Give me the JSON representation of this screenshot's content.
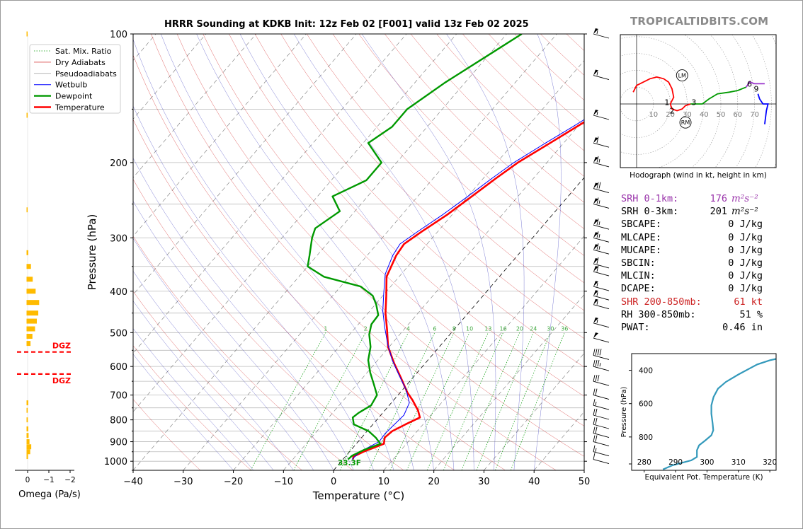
{
  "title": "HRRR Sounding at KDKB Init: 12z Feb 02 [F001] valid 13z Feb 02 2025",
  "watermark": "TROPICALTIDBITS.COM",
  "colors": {
    "temperature": "#ff0000",
    "dewpoint": "#009900",
    "wetbulb": "#0000ff",
    "dry_adiabat": "#cc0000",
    "moist_adiabat": "#0000aa",
    "mixing_ratio": "#009900",
    "omega_bar": "#ffbb00",
    "dgz": "#ff0000",
    "srh1": "#9933aa",
    "shr": "#cc2222",
    "theta_e": "#3399bb"
  },
  "chart_data": [
    {
      "type": "line",
      "name": "skew-t",
      "xlabel": "Temperature (°C)",
      "ylabel": "Pressure (hPa)",
      "xlim": [
        -40,
        50
      ],
      "ylim": [
        1050,
        100
      ],
      "y_scale": "log",
      "x_ticks": [
        "−40",
        "−30",
        "−20",
        "−10",
        "0",
        "10",
        "20",
        "30",
        "40",
        "50"
      ],
      "y_ticks": [
        "100",
        "200",
        "300",
        "400",
        "500",
        "600",
        "700",
        "800",
        "900",
        "1000"
      ],
      "legend": [
        "Sat. Mix. Ratio",
        "Dry Adiabats",
        "Pseudoadiabats",
        "Wetbulb",
        "Dewpoint",
        "Temperature"
      ],
      "legend_position": "top-left",
      "mixing_ratio_labels": [
        "1",
        "2",
        "4",
        "6",
        "8",
        "10",
        "13",
        "16",
        "20",
        "24",
        "30",
        "36"
      ],
      "surface_label": "33.3F",
      "series": [
        {
          "name": "Temperature",
          "points": [
            [
              2,
              990
            ],
            [
              1.6,
              975
            ],
            [
              2.8,
              950
            ],
            [
              5.5,
              910
            ],
            [
              4.6,
              880
            ],
            [
              5.0,
              850
            ],
            [
              6.5,
              820
            ],
            [
              8.2,
              790
            ],
            [
              6.6,
              760
            ],
            [
              3.8,
              720
            ],
            [
              1.4,
              690
            ],
            [
              -2.2,
              640
            ],
            [
              -6.2,
              590
            ],
            [
              -10.2,
              540
            ],
            [
              -13.5,
              490
            ],
            [
              -16.5,
              450
            ],
            [
              -19.3,
              410
            ],
            [
              -22.5,
              370
            ],
            [
              -24.2,
              330
            ],
            [
              -24.6,
              310
            ],
            [
              -23.2,
              290
            ],
            [
              -21,
              265
            ],
            [
              -19.2,
              240
            ],
            [
              -17.5,
              218
            ],
            [
              -15.8,
              200
            ],
            [
              -12.7,
              180
            ],
            [
              -10.2,
              165
            ],
            [
              -7.5,
              150
            ],
            [
              -5.0,
              138
            ],
            [
              -3.5,
              128
            ],
            [
              -0.6,
              118
            ],
            [
              1.2,
              110
            ],
            [
              2.3,
              100
            ]
          ]
        },
        {
          "name": "Wetbulb",
          "points": [
            [
              1.8,
              990
            ],
            [
              2.1,
              950
            ],
            [
              4.2,
              900
            ],
            [
              4.0,
              860
            ],
            [
              4.3,
              820
            ],
            [
              4.6,
              780
            ],
            [
              3.6,
              730
            ],
            [
              0.7,
              680
            ],
            [
              -3.1,
              630
            ],
            [
              -7.1,
              580
            ],
            [
              -10.9,
              530
            ],
            [
              -14.3,
              485
            ],
            [
              -17.4,
              445
            ],
            [
              -20.2,
              405
            ],
            [
              -23.2,
              365
            ],
            [
              -24.9,
              330
            ],
            [
              -25.4,
              310
            ],
            [
              -24,
              290
            ],
            [
              -21.9,
              265
            ],
            [
              -20.0,
              240
            ],
            [
              -18.3,
              218
            ],
            [
              -16.6,
              200
            ],
            [
              -13.6,
              180
            ],
            [
              -11.0,
              165
            ],
            [
              -8.3,
              150
            ],
            [
              -5.9,
              138
            ],
            [
              -4.3,
              128
            ],
            [
              -1.4,
              118
            ],
            [
              0.5,
              110
            ],
            [
              1.6,
              100
            ]
          ]
        },
        {
          "name": "Dewpoint",
          "points": [
            [
              1.0,
              990
            ],
            [
              1.2,
              970
            ],
            [
              2.6,
              940
            ],
            [
              4.8,
              910
            ],
            [
              2.8,
              880
            ],
            [
              0.3,
              850
            ],
            [
              -3.8,
              820
            ],
            [
              -5.2,
              790
            ],
            [
              -4.8,
              770
            ],
            [
              -3.6,
              740
            ],
            [
              -4.2,
              700
            ],
            [
              -6.7,
              660
            ],
            [
              -9.4,
              620
            ],
            [
              -11.9,
              580
            ],
            [
              -13.7,
              540
            ],
            [
              -16.1,
              505
            ],
            [
              -17.4,
              478
            ],
            [
              -17.6,
              455
            ],
            [
              -19.8,
              430
            ],
            [
              -22,
              410
            ],
            [
              -26,
              390
            ],
            [
              -35,
              370
            ],
            [
              -40,
              350
            ],
            [
              -41.5,
              330
            ],
            [
              -44,
              300
            ],
            [
              -45,
              285
            ],
            [
              -43,
              260
            ],
            [
              -47,
              240
            ],
            [
              -43,
              220
            ],
            [
              -43,
              200
            ],
            [
              -49,
              180
            ],
            [
              -47,
              165
            ],
            [
              -47,
              150
            ],
            [
              -44,
              130
            ],
            [
              -40,
              112
            ],
            [
              -37,
              100
            ]
          ]
        }
      ]
    },
    {
      "type": "scatter",
      "name": "hodograph",
      "title": "Hodograph (wind in kt, height in km)",
      "ring_labels": [
        "10",
        "20",
        "30",
        "40",
        "50",
        "60",
        "70"
      ],
      "height_labels": [
        {
          "label": "1",
          "u": 18,
          "v": 1
        },
        {
          "label": "2",
          "u": 21,
          "v": -4
        },
        {
          "label": "3",
          "u": 34,
          "v": 1
        },
        {
          "label": "6",
          "u": 67,
          "v": 12
        },
        {
          "label": "9",
          "u": 71,
          "v": 9
        }
      ],
      "storm_motion": [
        {
          "label": "LM",
          "u": 27,
          "v": 17
        },
        {
          "label": "RM",
          "u": 29,
          "v": -11
        }
      ],
      "series": [
        {
          "name": "0-3km",
          "color": "#ff0000",
          "points": [
            [
              -2,
              7
            ],
            [
              0,
              11
            ],
            [
              8,
              15
            ],
            [
              12,
              16
            ],
            [
              16,
              15
            ],
            [
              19,
              13
            ],
            [
              21,
              9
            ],
            [
              22,
              4
            ],
            [
              20,
              0
            ],
            [
              21,
              -3
            ],
            [
              24,
              -4
            ],
            [
              27,
              -3
            ],
            [
              29,
              -1
            ],
            [
              32,
              0
            ]
          ]
        },
        {
          "name": "3-6km",
          "color": "#009900",
          "points": [
            [
              32,
              0
            ],
            [
              36,
              0
            ],
            [
              39,
              0
            ],
            [
              43,
              3
            ],
            [
              48,
              6
            ],
            [
              55,
              7
            ],
            [
              60,
              8
            ],
            [
              65,
              10
            ]
          ]
        },
        {
          "name": "6-9km",
          "color": "#9933cc",
          "points": [
            [
              65,
              10
            ],
            [
              67,
              13
            ],
            [
              70,
              12
            ],
            [
              76,
              12
            ]
          ]
        },
        {
          "name": "9+km",
          "color": "#0000ff",
          "points": [
            [
              72,
              6
            ],
            [
              73,
              3
            ],
            [
              75,
              0
            ],
            [
              78,
              0
            ],
            [
              77,
              -4
            ],
            [
              76,
              -12
            ]
          ]
        }
      ]
    },
    {
      "type": "line",
      "name": "theta-e",
      "xlabel": "Equivalent Pot. Temperature (K)",
      "ylabel": "Pressure (hPa)",
      "xlim": [
        276,
        322
      ],
      "ylim": [
        1000,
        300
      ],
      "x_ticks": [
        "280",
        "290",
        "300",
        "310",
        "320"
      ],
      "y_ticks": [
        "400",
        "600",
        "800"
      ],
      "series": [
        {
          "name": "Theta-E",
          "points": [
            [
              286,
              995
            ],
            [
              289,
              970
            ],
            [
              295,
              940
            ],
            [
              296.8,
              920
            ],
            [
              296.8,
              880
            ],
            [
              297.5,
              850
            ],
            [
              299.5,
              820
            ],
            [
              301.4,
              790
            ],
            [
              302,
              760
            ],
            [
              301.8,
              720
            ],
            [
              301.4,
              660
            ],
            [
              301.4,
              610
            ],
            [
              302.1,
              560
            ],
            [
              303.5,
              510
            ],
            [
              306,
              470
            ],
            [
              310,
              425
            ],
            [
              313.5,
              390
            ],
            [
              316,
              365
            ],
            [
              320,
              340
            ],
            [
              322,
              332
            ]
          ]
        }
      ]
    },
    {
      "type": "bar",
      "name": "omega",
      "xlabel": "Omega (Pa/s)",
      "x_ticks": [
        "0",
        "−1",
        "−2"
      ],
      "dgz_label": "DGZ",
      "dgz_levels": [
        555,
        625
      ],
      "values": [
        [
          100,
          0.04
        ],
        [
          155,
          0.04
        ],
        [
          258,
          0.03
        ],
        [
          325,
          0.12
        ],
        [
          350,
          0.3
        ],
        [
          375,
          0.42
        ],
        [
          400,
          0.62
        ],
        [
          425,
          0.86
        ],
        [
          450,
          0.8
        ],
        [
          470,
          0.7
        ],
        [
          490,
          0.58
        ],
        [
          510,
          0.4
        ],
        [
          530,
          0.27
        ],
        [
          730,
          0.12
        ],
        [
          760,
          0.08
        ],
        [
          800,
          0.09
        ],
        [
          840,
          0.12
        ],
        [
          870,
          0.14
        ],
        [
          900,
          0.2
        ],
        [
          925,
          0.32
        ],
        [
          950,
          0.25
        ],
        [
          975,
          0.1
        ]
      ]
    }
  ],
  "stats": [
    {
      "label": "SRH 0-1km:",
      "value": "176",
      "unit": "m²s⁻²",
      "color": "#9933aa"
    },
    {
      "label": "SRH 0-3km:",
      "value": "201",
      "unit": "m²s⁻²",
      "color": "#000000"
    },
    {
      "label": "SBCAPE:",
      "value": "0 J/kg",
      "unit": "",
      "color": "#000000"
    },
    {
      "label": "MLCAPE:",
      "value": "0 J/kg",
      "unit": "",
      "color": "#000000"
    },
    {
      "label": "MUCAPE:",
      "value": "0 J/kg",
      "unit": "",
      "color": "#000000"
    },
    {
      "label": "SBCIN:",
      "value": "0 J/kg",
      "unit": "",
      "color": "#000000"
    },
    {
      "label": "MLCIN:",
      "value": "0 J/kg",
      "unit": "",
      "color": "#000000"
    },
    {
      "label": "DCAPE:",
      "value": "0 J/kg",
      "unit": "",
      "color": "#000000"
    },
    {
      "label": "SHR 200-850mb:",
      "value": "61 kt",
      "unit": "",
      "color": "#cc2222"
    },
    {
      "label": "RH 300-850mb:",
      "value": "51 %",
      "unit": "",
      "color": "#000000"
    },
    {
      "label": "PWAT:",
      "value": "0.46 in",
      "unit": "",
      "color": "#000000"
    }
  ],
  "wind_barbs": [
    {
      "p": 100,
      "kt": 55
    },
    {
      "p": 125,
      "kt": 55
    },
    {
      "p": 155,
      "kt": 55
    },
    {
      "p": 180,
      "kt": 60
    },
    {
      "p": 200,
      "kt": 65
    },
    {
      "p": 230,
      "kt": 70
    },
    {
      "p": 250,
      "kt": 65
    },
    {
      "p": 280,
      "kt": 65
    },
    {
      "p": 300,
      "kt": 65
    },
    {
      "p": 320,
      "kt": 65
    },
    {
      "p": 345,
      "kt": 60
    },
    {
      "p": 360,
      "kt": 60
    },
    {
      "p": 390,
      "kt": 55
    },
    {
      "p": 410,
      "kt": 55
    },
    {
      "p": 430,
      "kt": 55
    },
    {
      "p": 475,
      "kt": 55
    },
    {
      "p": 515,
      "kt": 50
    },
    {
      "p": 565,
      "kt": 40
    },
    {
      "p": 600,
      "kt": 35
    },
    {
      "p": 650,
      "kt": 30
    },
    {
      "p": 700,
      "kt": 20
    },
    {
      "p": 740,
      "kt": 15
    },
    {
      "p": 780,
      "kt": 20
    },
    {
      "p": 820,
      "kt": 20
    },
    {
      "p": 860,
      "kt": 20
    },
    {
      "p": 900,
      "kt": 20
    },
    {
      "p": 950,
      "kt": 15
    },
    {
      "p": 990,
      "kt": 10
    }
  ]
}
